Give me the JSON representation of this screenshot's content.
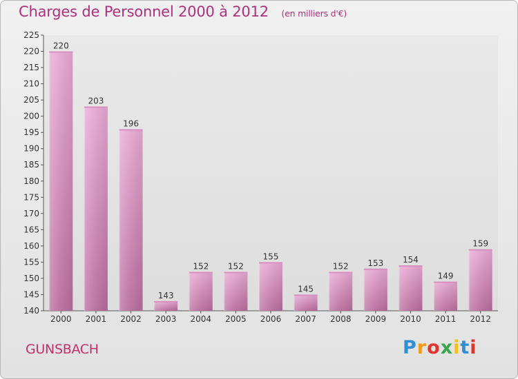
{
  "header": {
    "title": "Charges de Personnel 2000 à 2012",
    "unit": "(en milliers d'€)"
  },
  "commune": "GUNSBACH",
  "logo": {
    "text": "Proxiti",
    "colors": [
      "#2f8fd6",
      "#f29a1a",
      "#e0342e",
      "#3aa84a",
      "#f2c21a",
      "#2f8fd6",
      "#e0342e"
    ]
  },
  "colors": {
    "title": "#b0307f",
    "bar_top": "#e6a8d2",
    "bar_bottom": "#b86c9c",
    "axis": "#555555"
  },
  "chart_data": {
    "type": "bar",
    "title": "Charges de Personnel 2000 à 2012",
    "subtitle": "(en milliers d'€)",
    "categories": [
      "2000",
      "2001",
      "2002",
      "2003",
      "2004",
      "2005",
      "2006",
      "2007",
      "2008",
      "2009",
      "2010",
      "2011",
      "2012"
    ],
    "values": [
      220,
      203,
      196,
      143,
      152,
      152,
      155,
      145,
      152,
      153,
      154,
      149,
      159
    ],
    "ylim": [
      140,
      225
    ],
    "ytick_step": 5,
    "grid": false,
    "data_labels": true
  }
}
